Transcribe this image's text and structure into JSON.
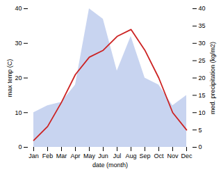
{
  "chart_data": {
    "type": "line",
    "categories": [
      "Jan",
      "Feb",
      "Mar",
      "Apr",
      "May",
      "Jun",
      "Jul",
      "Aug",
      "Sep",
      "Oct",
      "Nov",
      "Dec"
    ],
    "series": [
      {
        "type": "area",
        "axis": "y2",
        "color": "#c8d4f0",
        "values": [
          10,
          12,
          13,
          18,
          40,
          37,
          22,
          32,
          20,
          18,
          12,
          15
        ]
      },
      {
        "type": "line",
        "color": "#cc2222",
        "values": [
          2,
          6,
          13,
          21,
          26,
          28,
          32,
          34,
          28,
          20,
          10,
          5
        ]
      }
    ],
    "xlabel": "date (month)",
    "ylabel": "max temp (C)",
    "y2label": "med. precipitation (kg/m2)",
    "ylim": [
      0,
      40
    ],
    "yticks": [
      0,
      10,
      20,
      30,
      40
    ],
    "y2lim": [
      0,
      40
    ],
    "y2ticks": [
      0,
      5,
      10,
      15,
      20,
      25,
      30,
      35,
      40
    ],
    "grid": false
  }
}
